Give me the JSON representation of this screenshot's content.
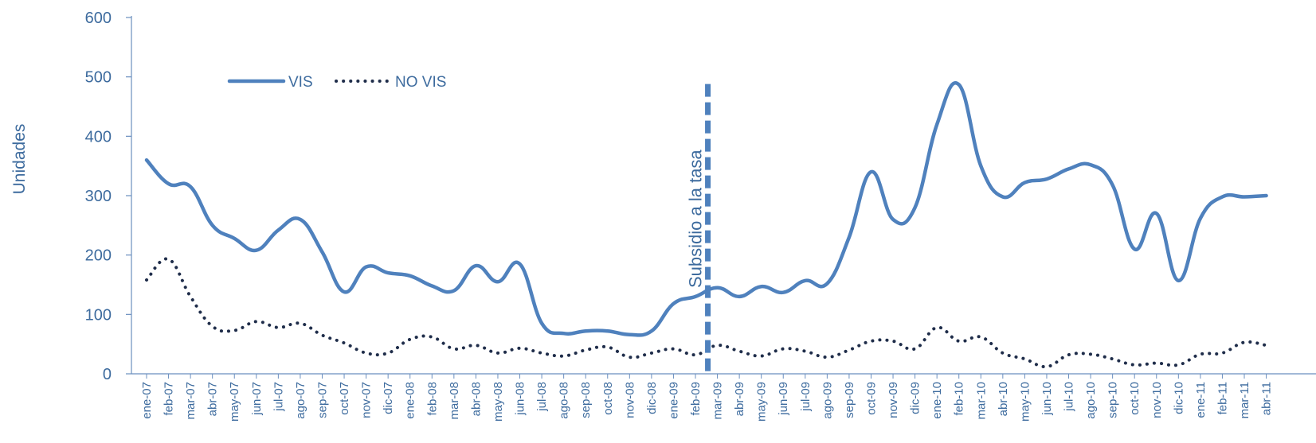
{
  "chart_data": {
    "type": "line",
    "ylabel": "Unidades",
    "ylim": [
      0,
      600
    ],
    "yticks": [
      0,
      100,
      200,
      300,
      400,
      500,
      600
    ],
    "grid": false,
    "legend_position": "top-left",
    "categories": [
      "ene-07",
      "feb-07",
      "mar-07",
      "abr-07",
      "may-07",
      "jun-07",
      "jul-07",
      "ago-07",
      "sep-07",
      "oct-07",
      "nov-07",
      "dic-07",
      "ene-08",
      "feb-08",
      "mar-08",
      "abr-08",
      "may-08",
      "jun-08",
      "jul-08",
      "ago-08",
      "sep-08",
      "oct-08",
      "nov-08",
      "dic-08",
      "ene-09",
      "feb-09",
      "mar-09",
      "abr-09",
      "may-09",
      "jun-09",
      "jul-09",
      "ago-09",
      "sep-09",
      "oct-09",
      "nov-09",
      "dic-09",
      "ene-10",
      "feb-10",
      "mar-10",
      "abr-10",
      "may-10",
      "jun-10",
      "jul-10",
      "ago-10",
      "sep-10",
      "oct-10",
      "nov-10",
      "dic-10",
      "ene-11",
      "feb-11",
      "mar-11",
      "abr-11"
    ],
    "series": [
      {
        "name": "VIS",
        "color": "#4f81bd",
        "style": "solid",
        "values": [
          360,
          320,
          315,
          250,
          228,
          208,
          242,
          260,
          205,
          138,
          180,
          170,
          165,
          148,
          140,
          182,
          155,
          185,
          85,
          68,
          72,
          72,
          66,
          72,
          118,
          130,
          145,
          130,
          147,
          137,
          157,
          152,
          230,
          340,
          260,
          280,
          420,
          487,
          350,
          298,
          322,
          328,
          345,
          352,
          318,
          210,
          270,
          157,
          262,
          298,
          298,
          300
        ]
      },
      {
        "name": "NO VIS",
        "color": "#1f2d4a",
        "style": "dotted",
        "values": [
          158,
          193,
          130,
          80,
          73,
          88,
          78,
          85,
          65,
          52,
          35,
          35,
          58,
          62,
          42,
          48,
          35,
          43,
          35,
          30,
          40,
          45,
          28,
          35,
          42,
          32,
          48,
          38,
          30,
          42,
          38,
          28,
          40,
          55,
          55,
          42,
          78,
          55,
          62,
          35,
          25,
          12,
          32,
          33,
          25,
          15,
          18,
          15,
          33,
          35,
          53,
          48
        ]
      }
    ],
    "annotations": [
      {
        "text": "Subsidio a la tasa",
        "at_category": "mar-09",
        "type": "vertical-dashed-line",
        "y_top": 488,
        "color": "#4f81bd"
      }
    ]
  }
}
